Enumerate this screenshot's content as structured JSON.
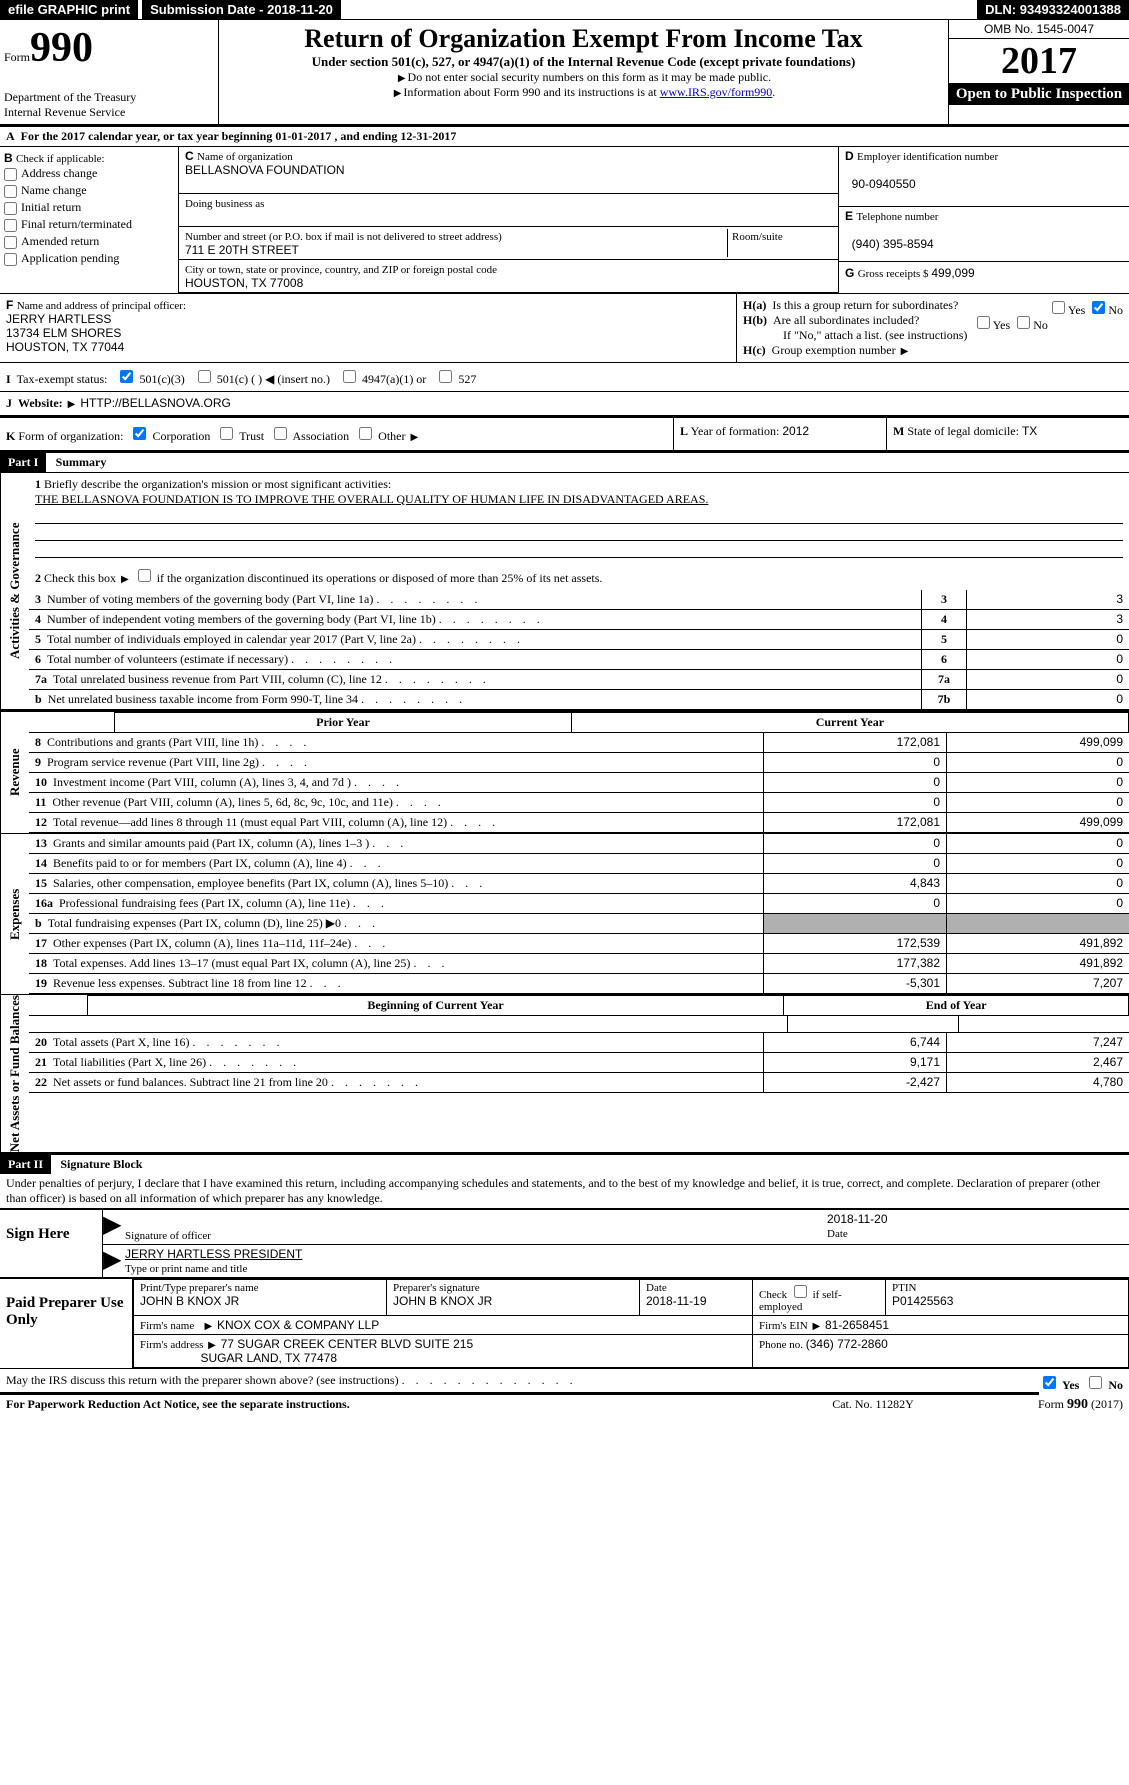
{
  "top": {
    "efile": "efile GRAPHIC print",
    "submission_label": "Submission Date - ",
    "submission_date": "2018-11-20",
    "dln_label": "DLN: ",
    "dln": "93493324001388"
  },
  "header": {
    "form_label": "Form",
    "form_number": "990",
    "dept": "Department of the Treasury",
    "irs": "Internal Revenue Service",
    "title": "Return of Organization Exempt From Income Tax",
    "subtitle": "Under section 501(c), 527, or 4947(a)(1) of the Internal Revenue Code (except private foundations)",
    "inst1": "Do not enter social security numbers on this form as it may be made public.",
    "inst2_pre": "Information about Form 990 and its instructions is at ",
    "inst2_link": "www.IRS.gov/form990",
    "omb": "OMB No. 1545-0047",
    "year": "2017",
    "open_public": "Open to Public Inspection"
  },
  "section_a": {
    "label": "A",
    "text": "For the 2017 calendar year, or tax year beginning 01-01-2017   , and ending 12-31-2017"
  },
  "section_b": {
    "label": "B",
    "check_label": "Check if applicable:",
    "opts": [
      "Address change",
      "Name change",
      "Initial return",
      "Final return/terminated",
      "Amended return",
      "Application pending"
    ]
  },
  "section_c": {
    "label": "C",
    "name_label": "Name of organization",
    "name": "BELLASNOVA FOUNDATION",
    "dba_label": "Doing business as",
    "dba": "",
    "street_label": "Number and street (or P.O. box if mail is not delivered to street address)",
    "room_label": "Room/suite",
    "street": "711 E 20TH STREET",
    "city_label": "City or town, state or province, country, and ZIP or foreign postal code",
    "city": "HOUSTON, TX  77008"
  },
  "section_d": {
    "label": "D",
    "ein_label": "Employer identification number",
    "ein": "90-0940550"
  },
  "section_e": {
    "label": "E",
    "phone_label": "Telephone number",
    "phone": "(940) 395-8594"
  },
  "section_g": {
    "label": "G",
    "gross_label": "Gross receipts $ ",
    "gross": "499,099"
  },
  "section_f": {
    "label": "F",
    "officer_label": "Name and address of principal officer:",
    "officer_name": "JERRY HARTLESS",
    "officer_addr1": "13734 ELM SHORES",
    "officer_addr2": "HOUSTON, TX  77044"
  },
  "section_h": {
    "ha_label": "H(a)",
    "ha_text": "Is this a group return for subordinates?",
    "ha_no_checked": true,
    "hb_label": "H(b)",
    "hb_text": "Are all subordinates included?",
    "hb_note": "If \"No,\" attach a list. (see instructions)",
    "hc_label": "H(c)",
    "hc_text": "Group exemption number",
    "yes": "Yes",
    "no": "No"
  },
  "section_i": {
    "label": "I",
    "tax_exempt_label": "Tax-exempt status:",
    "opts": [
      "501(c)(3)",
      "501(c) (   )",
      "(insert no.)",
      "4947(a)(1) or",
      "527"
    ],
    "checked_501c3": true
  },
  "section_j": {
    "label": "J",
    "website_label": "Website:",
    "website": "HTTP://BELLASNOVA.ORG"
  },
  "section_k": {
    "label": "K",
    "form_org_label": "Form of organization:",
    "opts": [
      "Corporation",
      "Trust",
      "Association",
      "Other"
    ],
    "checked_corp": true
  },
  "section_l": {
    "label": "L",
    "year_formation_label": "Year of formation: ",
    "year_formation": "2012"
  },
  "section_m": {
    "label": "M",
    "domicile_label": "State of legal domicile: ",
    "domicile": "TX"
  },
  "part1": {
    "header": "Part I",
    "title": "Summary",
    "labels": {
      "activities": "Activities & Governance",
      "revenue": "Revenue",
      "expenses": "Expenses",
      "netassets": "Net Assets or Fund Balances"
    },
    "line1": {
      "num": "1",
      "text": "Briefly describe the organization's mission or most significant activities:",
      "value": "THE BELLASNOVA FOUNDATION IS TO IMPROVE THE OVERALL QUALITY OF HUMAN LIFE IN DISADVANTAGED AREAS."
    },
    "line2": {
      "num": "2",
      "text": "Check this box",
      "text2": "if the organization discontinued its operations or disposed of more than 25% of its net assets."
    },
    "gov_lines": [
      {
        "num": "3",
        "text": "Number of voting members of the governing body (Part VI, line 1a)",
        "box": "3",
        "val": "3"
      },
      {
        "num": "4",
        "text": "Number of independent voting members of the governing body (Part VI, line 1b)",
        "box": "4",
        "val": "3"
      },
      {
        "num": "5",
        "text": "Total number of individuals employed in calendar year 2017 (Part V, line 2a)",
        "box": "5",
        "val": "0"
      },
      {
        "num": "6",
        "text": "Total number of volunteers (estimate if necessary)",
        "box": "6",
        "val": "0"
      },
      {
        "num": "7a",
        "text": "Total unrelated business revenue from Part VIII, column (C), line 12",
        "box": "7a",
        "val": "0"
      },
      {
        "num": "b",
        "text": "Net unrelated business taxable income from Form 990-T, line 34",
        "box": "7b",
        "val": "0"
      }
    ],
    "col_hdr_prior": "Prior Year",
    "col_hdr_current": "Current Year",
    "rev_lines": [
      {
        "num": "8",
        "text": "Contributions and grants (Part VIII, line 1h)",
        "prior": "172,081",
        "curr": "499,099"
      },
      {
        "num": "9",
        "text": "Program service revenue (Part VIII, line 2g)",
        "prior": "0",
        "curr": "0"
      },
      {
        "num": "10",
        "text": "Investment income (Part VIII, column (A), lines 3, 4, and 7d )",
        "prior": "0",
        "curr": "0"
      },
      {
        "num": "11",
        "text": "Other revenue (Part VIII, column (A), lines 5, 6d, 8c, 9c, 10c, and 11e)",
        "prior": "0",
        "curr": "0"
      },
      {
        "num": "12",
        "text": "Total revenue—add lines 8 through 11 (must equal Part VIII, column (A), line 12)",
        "prior": "172,081",
        "curr": "499,099"
      }
    ],
    "exp_lines": [
      {
        "num": "13",
        "text": "Grants and similar amounts paid (Part IX, column (A), lines 1–3 )",
        "prior": "0",
        "curr": "0"
      },
      {
        "num": "14",
        "text": "Benefits paid to or for members (Part IX, column (A), line 4)",
        "prior": "0",
        "curr": "0"
      },
      {
        "num": "15",
        "text": "Salaries, other compensation, employee benefits (Part IX, column (A), lines 5–10)",
        "prior": "4,843",
        "curr": "0"
      },
      {
        "num": "16a",
        "text": "Professional fundraising fees (Part IX, column (A), line 11e)",
        "prior": "0",
        "curr": "0"
      },
      {
        "num": "b",
        "text": "Total fundraising expenses (Part IX, column (D), line 25) ▶0",
        "prior": "",
        "curr": "",
        "shaded": true
      },
      {
        "num": "17",
        "text": "Other expenses (Part IX, column (A), lines 11a–11d, 11f–24e)",
        "prior": "172,539",
        "curr": "491,892"
      },
      {
        "num": "18",
        "text": "Total expenses. Add lines 13–17 (must equal Part IX, column (A), line 25)",
        "prior": "177,382",
        "curr": "491,892"
      },
      {
        "num": "19",
        "text": "Revenue less expenses. Subtract line 18 from line 12",
        "prior": "-5,301",
        "curr": "7,207"
      }
    ],
    "col_hdr_begin": "Beginning of Current Year",
    "col_hdr_end": "End of Year",
    "na_lines": [
      {
        "num": "20",
        "text": "Total assets (Part X, line 16)",
        "prior": "6,744",
        "curr": "7,247"
      },
      {
        "num": "21",
        "text": "Total liabilities (Part X, line 26)",
        "prior": "9,171",
        "curr": "2,467"
      },
      {
        "num": "22",
        "text": "Net assets or fund balances. Subtract line 21 from line 20",
        "prior": "-2,427",
        "curr": "4,780"
      }
    ]
  },
  "part2": {
    "header": "Part II",
    "title": "Signature Block",
    "perjury": "Under penalties of perjury, I declare that I have examined this return, including accompanying schedules and statements, and to the best of my knowledge and belief, it is true, correct, and complete. Declaration of preparer (other than officer) is based on all information of which preparer has any knowledge.",
    "sign_here": "Sign Here",
    "sig_officer_label": "Signature of officer",
    "sig_date": "2018-11-20",
    "date_label": "Date",
    "officer_name_title": "JERRY HARTLESS PRESIDENT",
    "type_print_label": "Type or print name and title",
    "paid_prep": "Paid Preparer Use Only",
    "prep_name_label": "Print/Type preparer's name",
    "prep_name": "JOHN B KNOX JR",
    "prep_sig_label": "Preparer's signature",
    "prep_sig": "JOHN B KNOX JR",
    "prep_date_label": "Date",
    "prep_date": "2018-11-19",
    "check_self_label": "Check",
    "check_self_label2": "if self-employed",
    "ptin_label": "PTIN",
    "ptin": "P01425563",
    "firm_name_label": "Firm's name",
    "firm_name": "KNOX COX & COMPANY LLP",
    "firm_addr_label": "Firm's address",
    "firm_addr1": "77 SUGAR CREEK CENTER BLVD SUITE 215",
    "firm_addr2": "SUGAR LAND, TX  77478",
    "firm_ein_label": "Firm's EIN",
    "firm_ein": "81-2658451",
    "phone_label": "Phone no.",
    "phone": "(346) 772-2860",
    "discuss": "May the IRS discuss this return with the preparer shown above? (see instructions)",
    "discuss_yes_checked": true,
    "yes": "Yes",
    "no": "No"
  },
  "footer": {
    "paperwork": "For Paperwork Reduction Act Notice, see the separate instructions.",
    "catno": "Cat. No. 11282Y",
    "form_label": "Form",
    "form_num": "990",
    "form_year": "(2017)"
  }
}
